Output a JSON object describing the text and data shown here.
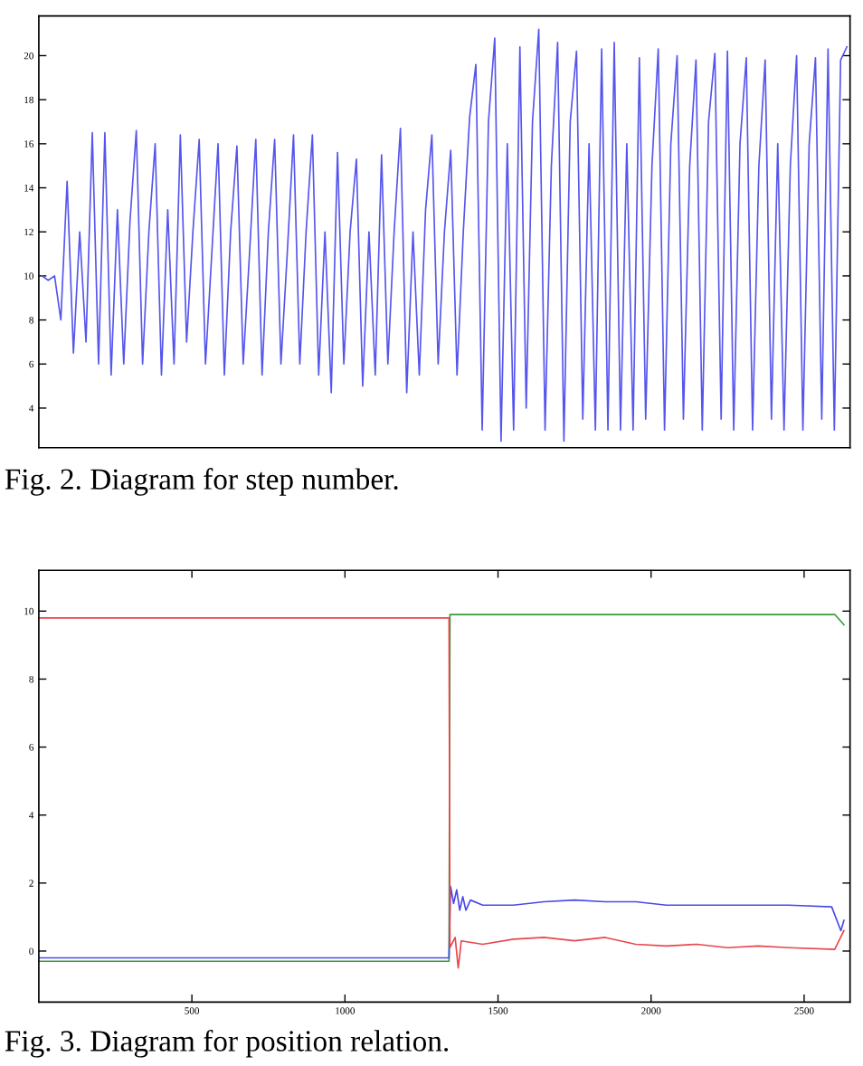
{
  "chart_data": [
    {
      "type": "line",
      "annotations": [
        "Fig. 2. Diagram for step number."
      ],
      "ylim": [
        2.2,
        21.8
      ],
      "categories": [
        null,
        null,
        null,
        null,
        null,
        null,
        null,
        null,
        null,
        null,
        null,
        null,
        null,
        null,
        null,
        null,
        null,
        null,
        null,
        null,
        null,
        null,
        null,
        null,
        null,
        null,
        null,
        null,
        null,
        null,
        null,
        null,
        null,
        null,
        null,
        null,
        null,
        null,
        null,
        null,
        null,
        null,
        null,
        null,
        null,
        null,
        null,
        null,
        null,
        null,
        null,
        null,
        null,
        null,
        null,
        null,
        null,
        null,
        null,
        null,
        null,
        null,
        null,
        null,
        null,
        null,
        null,
        null,
        null,
        null,
        null,
        null,
        null,
        null,
        null,
        null,
        null,
        null,
        null,
        null,
        null,
        null,
        null,
        null,
        null,
        null,
        null,
        null,
        null,
        null,
        null,
        null,
        null,
        null,
        null,
        null,
        null,
        null,
        null,
        null,
        null,
        null,
        null,
        null,
        null,
        null,
        null,
        null,
        null,
        null,
        null,
        null,
        null,
        null,
        null,
        null,
        null,
        null,
        null,
        null,
        null,
        null,
        null,
        null,
        null,
        null,
        null,
        null,
        null
      ],
      "yticks": [
        4,
        6,
        8,
        10,
        12,
        14,
        16,
        18,
        20
      ],
      "grid": false,
      "marker": "none",
      "line_style": "solid",
      "series": [
        {
          "color": "#5555ee",
          "values": [
            10,
            9.8,
            10,
            8,
            14.3,
            6.5,
            12,
            7,
            16.5,
            6,
            16.5,
            5.5,
            13,
            6,
            12.5,
            16.6,
            6,
            12,
            16,
            5.5,
            13,
            6,
            16.4,
            7,
            12,
            16.2,
            6,
            11,
            16,
            5.5,
            12,
            15.9,
            6,
            11,
            16.2,
            5.5,
            12,
            16.2,
            6,
            11,
            16.4,
            6,
            12,
            16.4,
            5.5,
            12,
            4.7,
            15.6,
            6,
            12,
            15.3,
            5,
            12,
            5.5,
            15.5,
            6,
            12,
            16.7,
            4.7,
            12,
            5.5,
            13,
            16.4,
            6,
            12,
            15.7,
            5.5,
            12,
            17.2,
            19.6,
            3,
            17,
            20.8,
            2.5,
            16,
            3,
            20.4,
            4,
            17,
            21.2,
            3,
            15,
            20.6,
            2.5,
            17,
            20.2,
            3.5,
            16,
            3,
            20.3,
            3,
            20.6,
            3,
            16,
            3,
            19.9,
            3.5,
            15,
            20.3,
            3,
            16,
            20,
            3.5,
            15,
            19.8,
            3,
            17,
            20.1,
            3.5,
            20.2,
            3,
            16,
            19.9,
            3,
            15,
            19.8,
            3.5,
            16,
            3,
            15,
            20,
            3,
            16,
            19.9,
            3.5,
            20.3,
            3,
            19.8,
            20.4
          ]
        }
      ]
    },
    {
      "type": "line",
      "annotations": [
        "Fig. 3. Diagram for position relation."
      ],
      "xlim": [
        0,
        2650
      ],
      "ylim": [
        -1.5,
        11.2
      ],
      "xticks": [
        500,
        1000,
        1500,
        2000,
        2500
      ],
      "yticks": [
        0,
        2,
        4,
        6,
        8,
        10
      ],
      "grid": false,
      "marker": "none",
      "line_style": "solid",
      "series": [
        {
          "color": "#3a9a3a",
          "x": [
            0,
            200,
            400,
            600,
            800,
            1000,
            1200,
            1340,
            1343,
            1500,
            1700,
            1900,
            2100,
            2300,
            2500,
            2600,
            2630
          ],
          "values": [
            -0.3,
            -0.3,
            -0.3,
            -0.3,
            -0.3,
            -0.3,
            -0.3,
            -0.3,
            9.9,
            9.9,
            9.9,
            9.9,
            9.9,
            9.9,
            9.9,
            9.9,
            9.6
          ]
        },
        {
          "color": "#4a4ae8",
          "x": [
            0,
            200,
            400,
            600,
            800,
            1000,
            1200,
            1340,
            1345,
            1355,
            1365,
            1375,
            1385,
            1395,
            1410,
            1450,
            1550,
            1650,
            1750,
            1850,
            1950,
            2050,
            2150,
            2250,
            2350,
            2450,
            2590,
            2620,
            2630
          ],
          "values": [
            -0.2,
            -0.2,
            -0.2,
            -0.2,
            -0.2,
            -0.2,
            -0.2,
            -0.2,
            1.9,
            1.4,
            1.8,
            1.2,
            1.6,
            1.2,
            1.5,
            1.35,
            1.35,
            1.45,
            1.5,
            1.45,
            1.45,
            1.35,
            1.35,
            1.35,
            1.35,
            1.35,
            1.3,
            0.6,
            0.9
          ]
        },
        {
          "color": "#e8474c",
          "x": [
            0,
            200,
            400,
            600,
            800,
            1000,
            1200,
            1340,
            1343,
            1360,
            1370,
            1380,
            1450,
            1550,
            1650,
            1750,
            1850,
            1950,
            2050,
            2150,
            2250,
            2350,
            2450,
            2600,
            2630
          ],
          "values": [
            9.8,
            9.8,
            9.8,
            9.8,
            9.8,
            9.8,
            9.8,
            9.8,
            0.1,
            0.4,
            -0.5,
            0.3,
            0.2,
            0.35,
            0.4,
            0.3,
            0.4,
            0.2,
            0.15,
            0.2,
            0.1,
            0.15,
            0.1,
            0.05,
            0.6
          ]
        }
      ]
    }
  ]
}
